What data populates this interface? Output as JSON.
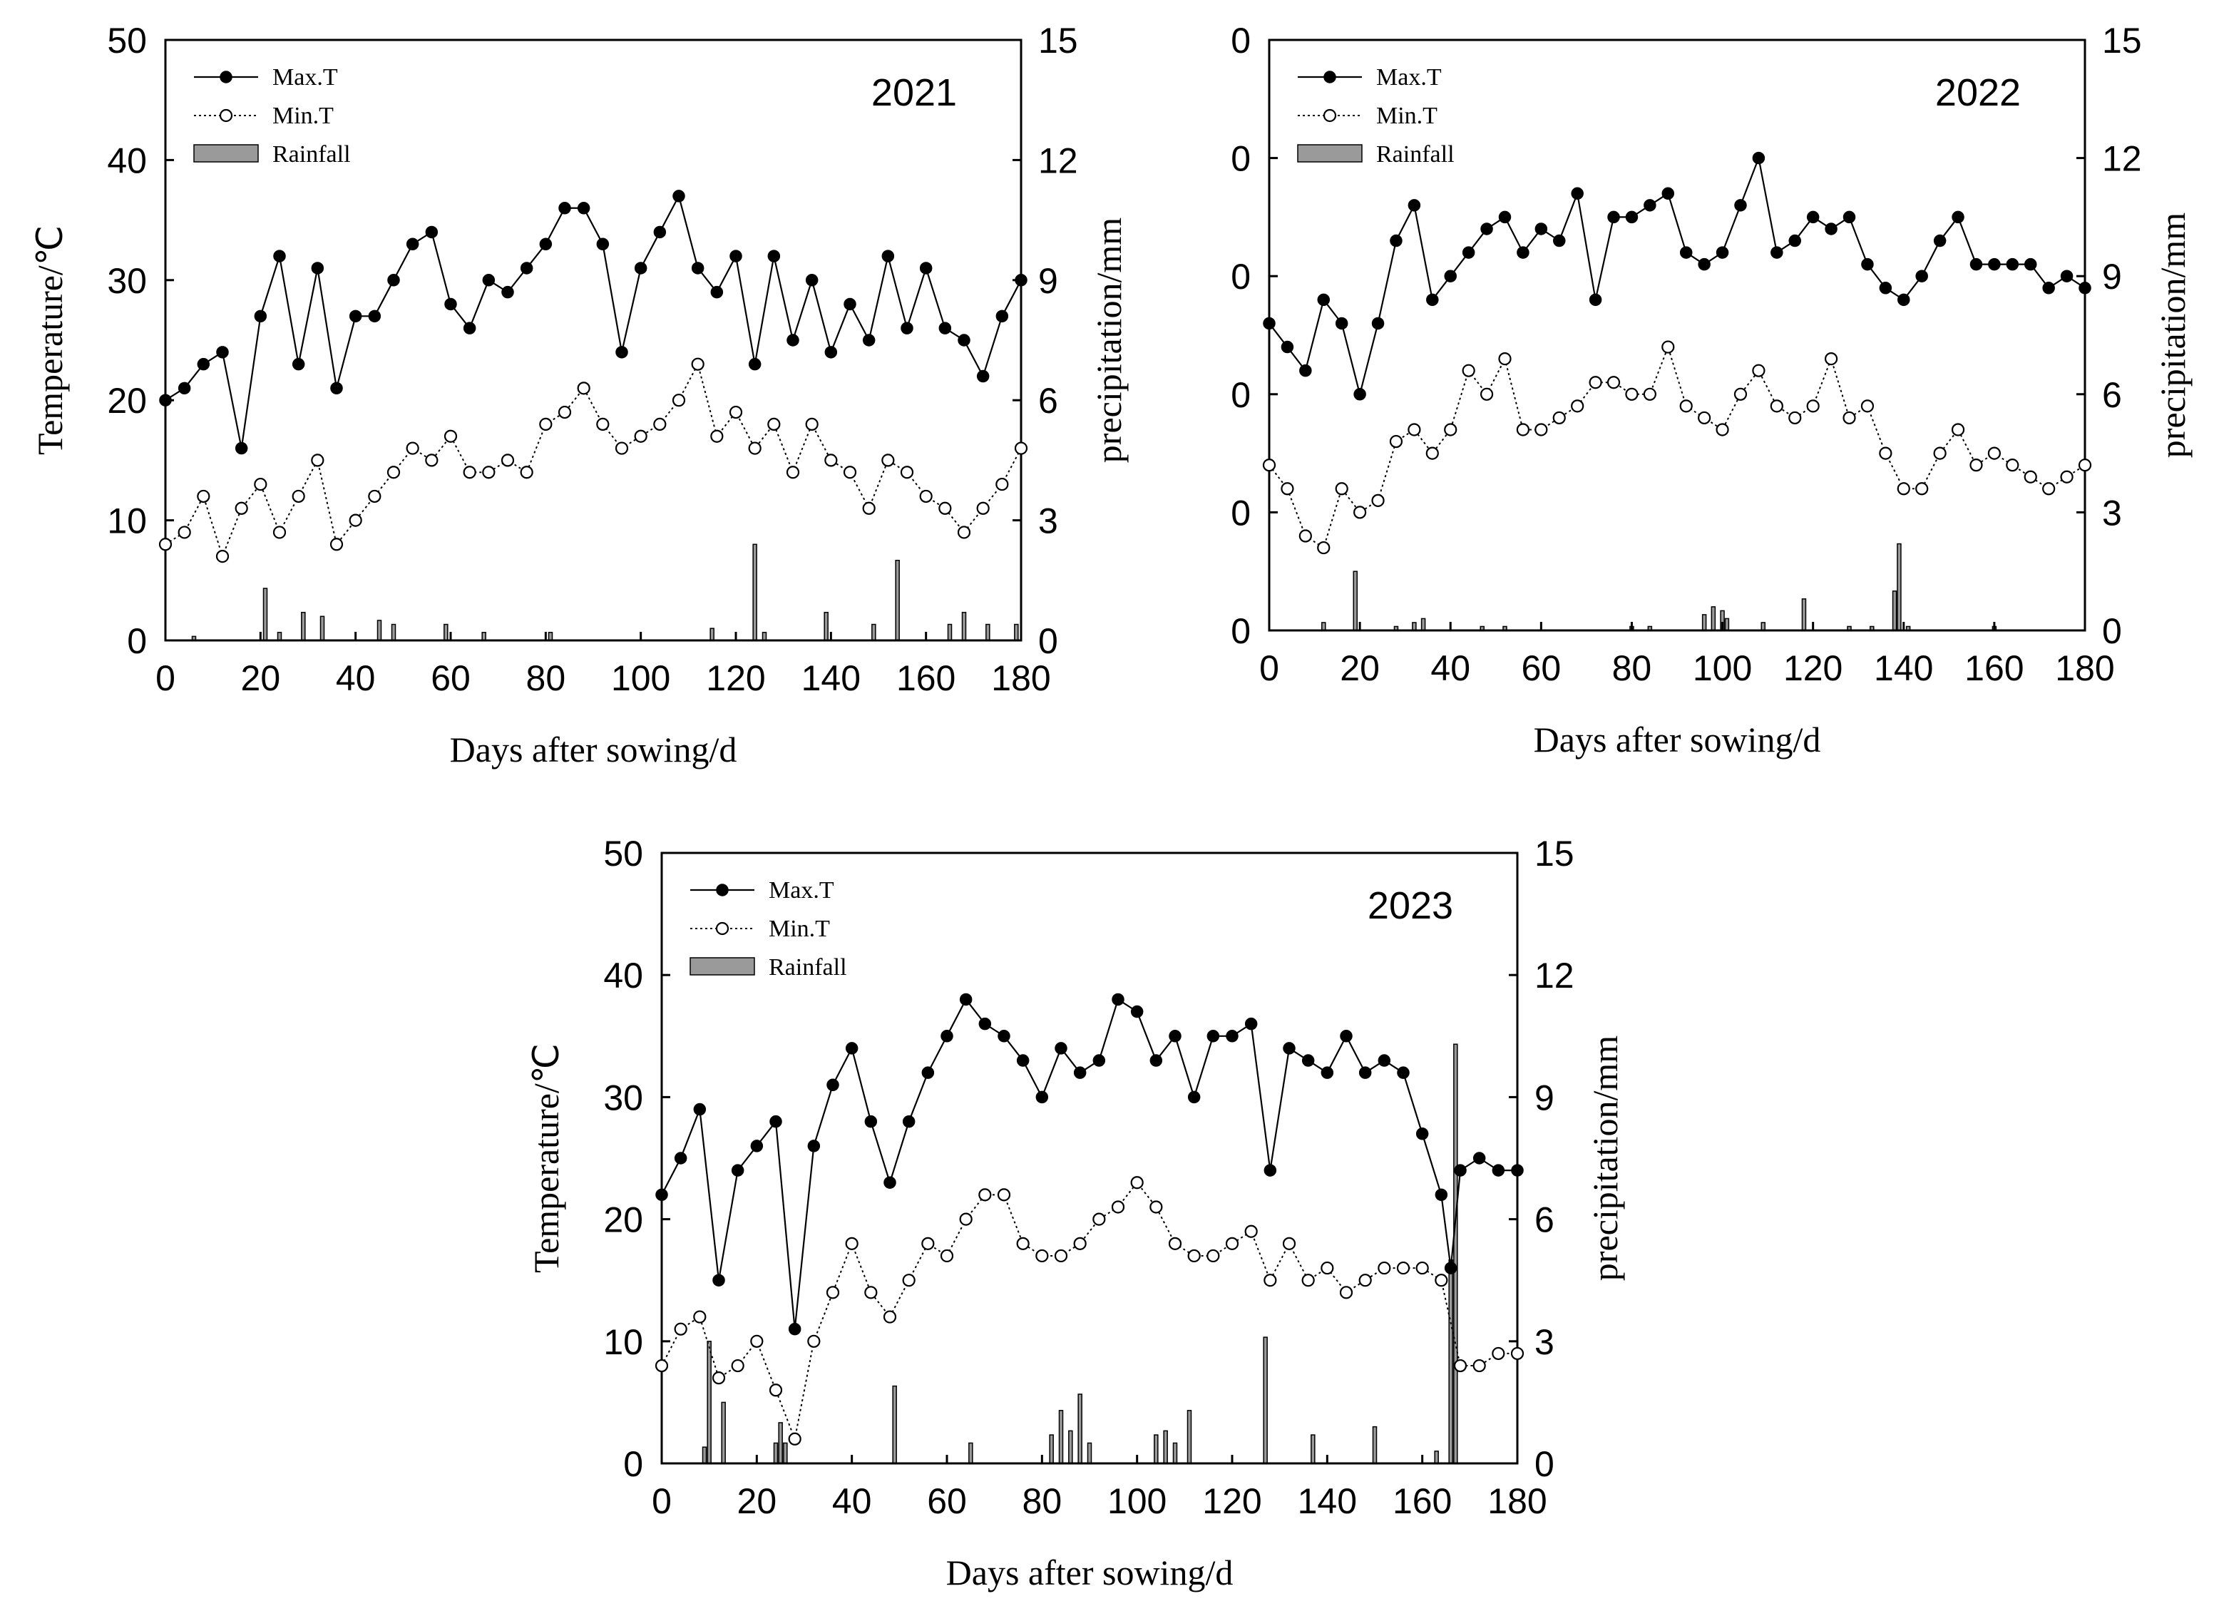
{
  "chart_data": [
    {
      "type": "line",
      "year_label": "2021",
      "xlabel": "Days after sowing/d",
      "ylabel": "Temperature/℃",
      "y2label": "precipitation/mm",
      "xlim": [
        0,
        180
      ],
      "ylim": [
        0,
        50
      ],
      "y2lim": [
        0,
        15
      ],
      "x_ticks": [
        "0",
        "20",
        "40",
        "60",
        "80",
        "100",
        "120",
        "140",
        "160",
        "180"
      ],
      "y_ticks": [
        "0",
        "10",
        "20",
        "30",
        "40",
        "50"
      ],
      "y2_ticks": [
        "0",
        "3",
        "6",
        "9",
        "12",
        "15"
      ],
      "legend": [
        "Max.T",
        "Min.T",
        "Rainfall"
      ],
      "series": [
        {
          "name": "Max.T",
          "x": [
            0,
            4,
            8,
            12,
            16,
            20,
            24,
            28,
            32,
            36,
            40,
            44,
            48,
            52,
            56,
            60,
            64,
            68,
            72,
            76,
            80,
            84,
            88,
            92,
            96,
            100,
            104,
            108,
            112,
            116,
            120,
            124,
            128,
            132,
            136,
            140,
            144,
            148,
            152,
            156,
            160,
            164,
            168,
            172,
            176,
            180
          ],
          "values": [
            20,
            21,
            23,
            24,
            16,
            27,
            32,
            23,
            31,
            21,
            27,
            27,
            30,
            33,
            34,
            28,
            26,
            30,
            29,
            31,
            33,
            36,
            36,
            33,
            24,
            31,
            34,
            37,
            31,
            29,
            32,
            23,
            32,
            25,
            30,
            24,
            28,
            25,
            32,
            26,
            31,
            26,
            25,
            22,
            27,
            30
          ]
        },
        {
          "name": "Min.T",
          "x": [
            0,
            4,
            8,
            12,
            16,
            20,
            24,
            28,
            32,
            36,
            40,
            44,
            48,
            52,
            56,
            60,
            64,
            68,
            72,
            76,
            80,
            84,
            88,
            92,
            96,
            100,
            104,
            108,
            112,
            116,
            120,
            124,
            128,
            132,
            136,
            140,
            144,
            148,
            152,
            156,
            160,
            164,
            168,
            172,
            176,
            180
          ],
          "values": [
            8,
            9,
            12,
            7,
            11,
            13,
            9,
            12,
            15,
            8,
            10,
            12,
            14,
            16,
            15,
            17,
            14,
            14,
            15,
            14,
            18,
            19,
            21,
            18,
            16,
            17,
            18,
            20,
            23,
            17,
            19,
            16,
            18,
            14,
            18,
            15,
            14,
            11,
            15,
            14,
            12,
            11,
            9,
            11,
            13,
            16
          ]
        },
        {
          "name": "Rainfall",
          "x": [
            6,
            21,
            24,
            29,
            33,
            45,
            48,
            59,
            67,
            81,
            115,
            124,
            126,
            139,
            149,
            154,
            165,
            168,
            173,
            179
          ],
          "values": [
            0.1,
            1.3,
            0.2,
            0.7,
            0.6,
            0.5,
            0.4,
            0.4,
            0.2,
            0.2,
            0.3,
            2.4,
            0.2,
            0.7,
            0.4,
            2.0,
            0.4,
            0.7,
            0.4,
            0.4
          ]
        }
      ]
    },
    {
      "type": "line",
      "year_label": "2022",
      "xlabel": "Days after sowing/d",
      "ylabel": "",
      "y2label": "precipitation/mm",
      "xlim": [
        0,
        180
      ],
      "ylim": [
        0,
        50
      ],
      "y2lim": [
        0,
        15
      ],
      "x_ticks": [
        "0",
        "20",
        "40",
        "60",
        "80",
        "100",
        "120",
        "140",
        "160",
        "180"
      ],
      "y_ticks": [
        "0",
        "0",
        "0",
        "0",
        "0",
        "0"
      ],
      "y2_ticks": [
        "0",
        "3",
        "6",
        "9",
        "12",
        "15"
      ],
      "legend": [
        "Max.T",
        "Min.T",
        "Rainfall"
      ],
      "series": [
        {
          "name": "Max.T",
          "x": [
            0,
            4,
            8,
            12,
            16,
            20,
            24,
            28,
            32,
            36,
            40,
            44,
            48,
            52,
            56,
            60,
            64,
            68,
            72,
            76,
            80,
            84,
            88,
            92,
            96,
            100,
            104,
            108,
            112,
            116,
            120,
            124,
            128,
            132,
            136,
            140,
            144,
            148,
            152,
            156,
            160,
            164,
            168,
            172,
            176,
            180
          ],
          "values": [
            26,
            24,
            22,
            28,
            26,
            20,
            26,
            33,
            36,
            28,
            30,
            32,
            34,
            35,
            32,
            34,
            33,
            37,
            28,
            35,
            35,
            36,
            37,
            32,
            31,
            32,
            36,
            40,
            32,
            33,
            35,
            34,
            35,
            31,
            29,
            28,
            30,
            33,
            35,
            31,
            31,
            31,
            31,
            29,
            30,
            29
          ]
        },
        {
          "name": "Min.T",
          "x": [
            0,
            4,
            8,
            12,
            16,
            20,
            24,
            28,
            32,
            36,
            40,
            44,
            48,
            52,
            56,
            60,
            64,
            68,
            72,
            76,
            80,
            84,
            88,
            92,
            96,
            100,
            104,
            108,
            112,
            116,
            120,
            124,
            128,
            132,
            136,
            140,
            144,
            148,
            152,
            156,
            160,
            164,
            168,
            172,
            176,
            180
          ],
          "values": [
            14,
            12,
            8,
            7,
            12,
            10,
            11,
            16,
            17,
            15,
            17,
            22,
            20,
            23,
            17,
            17,
            18,
            19,
            21,
            21,
            20,
            20,
            24,
            19,
            18,
            17,
            20,
            22,
            19,
            18,
            19,
            23,
            18,
            19,
            15,
            12,
            12,
            15,
            17,
            14,
            15,
            14,
            13,
            12,
            13,
            14
          ]
        },
        {
          "name": "Rainfall",
          "x": [
            12,
            19,
            28,
            32,
            34,
            47,
            52,
            80,
            84,
            96,
            98,
            100,
            101,
            109,
            118,
            128,
            133,
            138,
            139,
            141,
            160
          ],
          "values": [
            0.2,
            1.5,
            0.1,
            0.2,
            0.3,
            0.1,
            0.1,
            0.1,
            0.1,
            0.4,
            0.6,
            0.5,
            0.3,
            0.2,
            0.8,
            0.1,
            0.1,
            1.0,
            2.2,
            0.1,
            0.1
          ]
        }
      ]
    },
    {
      "type": "line",
      "year_label": "2023",
      "xlabel": "Days after sowing/d",
      "ylabel": "Temperature/℃",
      "y2label": "precipitation/mm",
      "xlim": [
        0,
        180
      ],
      "ylim": [
        0,
        50
      ],
      "y2lim": [
        0,
        15
      ],
      "x_ticks": [
        "0",
        "20",
        "40",
        "60",
        "80",
        "100",
        "120",
        "140",
        "160",
        "180"
      ],
      "y_ticks": [
        "0",
        "10",
        "20",
        "30",
        "40",
        "50"
      ],
      "y2_ticks": [
        "0",
        "3",
        "6",
        "9",
        "12",
        "15"
      ],
      "legend": [
        "Max.T",
        "Min.T",
        "Rainfall"
      ],
      "series": [
        {
          "name": "Max.T",
          "x": [
            0,
            4,
            8,
            12,
            16,
            20,
            24,
            28,
            32,
            36,
            40,
            44,
            48,
            52,
            56,
            60,
            64,
            68,
            72,
            76,
            80,
            84,
            88,
            92,
            96,
            100,
            104,
            108,
            112,
            116,
            120,
            124,
            128,
            132,
            136,
            140,
            144,
            148,
            152,
            156,
            160,
            164,
            166,
            168,
            172,
            176,
            180
          ],
          "values": [
            22,
            25,
            29,
            15,
            24,
            26,
            28,
            11,
            26,
            31,
            34,
            28,
            23,
            28,
            32,
            35,
            38,
            36,
            35,
            33,
            30,
            34,
            32,
            33,
            38,
            37,
            33,
            35,
            30,
            35,
            35,
            36,
            24,
            34,
            33,
            32,
            35,
            32,
            33,
            32,
            27,
            22,
            16,
            24,
            25,
            24,
            24
          ]
        },
        {
          "name": "Min.T",
          "x": [
            0,
            4,
            8,
            12,
            16,
            20,
            24,
            28,
            32,
            36,
            40,
            44,
            48,
            52,
            56,
            60,
            64,
            68,
            72,
            76,
            80,
            84,
            88,
            92,
            96,
            100,
            104,
            108,
            112,
            116,
            120,
            124,
            128,
            132,
            136,
            140,
            144,
            148,
            152,
            156,
            160,
            164,
            168,
            172,
            176,
            180
          ],
          "values": [
            8,
            11,
            12,
            7,
            8,
            10,
            6,
            2,
            10,
            14,
            18,
            14,
            12,
            15,
            18,
            17,
            20,
            22,
            22,
            18,
            17,
            17,
            18,
            20,
            21,
            23,
            21,
            18,
            17,
            17,
            18,
            19,
            15,
            18,
            15,
            16,
            14,
            15,
            16,
            16,
            16,
            15,
            8,
            8,
            9,
            9
          ]
        },
        {
          "name": "Rainfall",
          "x": [
            9,
            10,
            13,
            24,
            25,
            26,
            49,
            65,
            82,
            84,
            86,
            88,
            90,
            104,
            106,
            108,
            111,
            127,
            137,
            150,
            163,
            166,
            167
          ],
          "values": [
            0.4,
            3.0,
            1.5,
            0.5,
            1.0,
            0.5,
            1.9,
            0.5,
            0.7,
            1.3,
            0.8,
            1.7,
            0.5,
            0.7,
            0.8,
            0.5,
            1.3,
            3.1,
            0.7,
            0.9,
            0.3,
            5.0,
            10.3
          ]
        }
      ]
    }
  ]
}
